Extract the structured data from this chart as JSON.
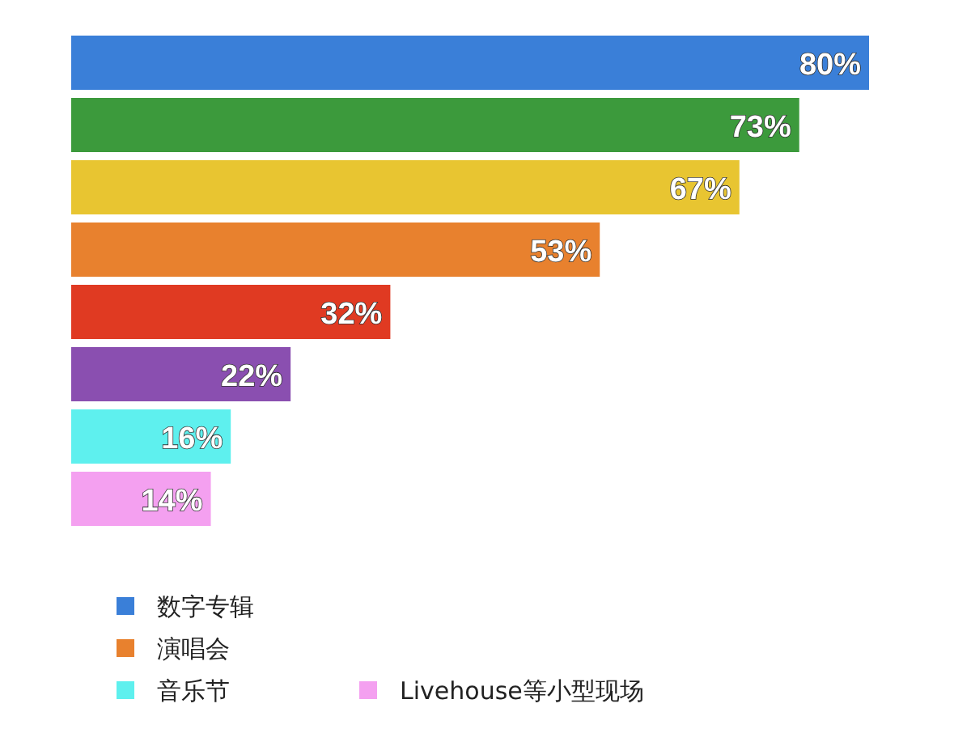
{
  "chart_data": {
    "type": "bar",
    "orientation": "horizontal",
    "stacked": true,
    "legend": "bottom",
    "categories": [
      null,
      null,
      null,
      null,
      null,
      null,
      null,
      null
    ],
    "series": [
      {
        "name": "数字专辑",
        "color": "#3a7fd8",
        "values": [
          80,
          null,
          null,
          null,
          null,
          null,
          null,
          null
        ],
        "value_labels": [
          "80%",
          null,
          null,
          null,
          null,
          null,
          null,
          null
        ]
      },
      {
        "color": "#3c9a3c",
        "values": [
          null,
          73,
          null,
          null,
          null,
          null,
          null,
          null
        ],
        "value_labels": [
          null,
          "73%",
          null,
          null,
          null,
          null,
          null,
          null
        ]
      },
      {
        "color": "#e8c531",
        "values": [
          null,
          null,
          67,
          null,
          null,
          null,
          null,
          null
        ],
        "value_labels": [
          null,
          null,
          "67%",
          null,
          null,
          null,
          null,
          null
        ]
      },
      {
        "name": "演唱会",
        "color": "#e8812e",
        "values": [
          null,
          null,
          null,
          53,
          null,
          null,
          null,
          null
        ],
        "value_labels": [
          null,
          null,
          null,
          "53%",
          null,
          null,
          null,
          null
        ]
      },
      {
        "color": "#e03a22",
        "values": [
          null,
          null,
          null,
          null,
          32,
          null,
          null,
          null
        ],
        "value_labels": [
          null,
          null,
          null,
          null,
          "32%",
          null,
          null,
          null
        ]
      },
      {
        "color": "#8a4fb0",
        "values": [
          null,
          null,
          null,
          null,
          null,
          22,
          null,
          null
        ],
        "value_labels": [
          null,
          null,
          null,
          null,
          null,
          "22%",
          null,
          null
        ]
      },
      {
        "name": "音乐节",
        "color": "#5ef0ee",
        "values": [
          null,
          null,
          null,
          null,
          null,
          null,
          16,
          null
        ],
        "value_labels": [
          null,
          null,
          null,
          null,
          null,
          null,
          "16%",
          null
        ]
      },
      {
        "name": "Livehouse等小型现场",
        "color": "#f4a0f0",
        "values": [
          null,
          null,
          null,
          null,
          null,
          null,
          null,
          14
        ],
        "value_labels": [
          null,
          null,
          null,
          null,
          null,
          null,
          null,
          "14%"
        ]
      }
    ]
  }
}
